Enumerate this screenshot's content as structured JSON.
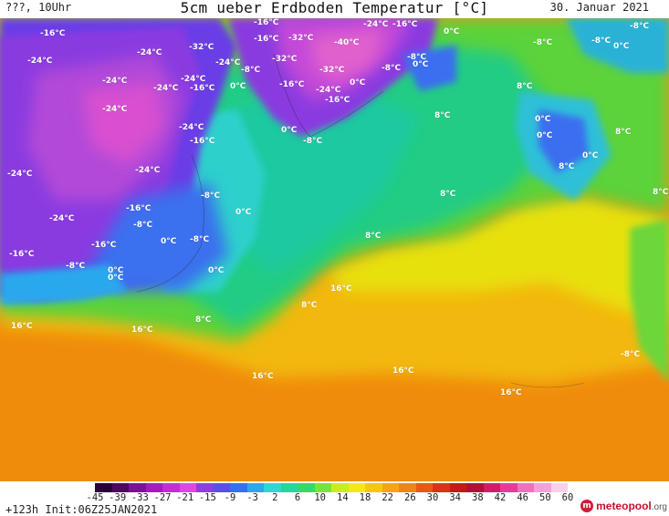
{
  "header": {
    "left": "???, 10Uhr",
    "title": "5cm ueber Erdboden Temperatur [°C]",
    "date": "30. Januar 2021"
  },
  "map": {
    "labels": [
      "-16°C",
      "-24°C",
      "-24°C",
      "-32°C",
      "-16°C",
      "-32°C",
      "-40°C",
      "-24°C",
      "-16°C",
      "0°C",
      "-8°C",
      "-8°C",
      "-16°C",
      "-24°C",
      "-24°C",
      "-24°C",
      "-24°C",
      "-16°C",
      "-8°C",
      "-32°C",
      "-32°C",
      "-8°C",
      "0°C",
      "-8°C",
      "-16°C",
      "0°C",
      "-24°C",
      "-16°C",
      "-24°C",
      "-24°C",
      "-24°C",
      "-24°C",
      "0°C",
      "-16°C",
      "0°C",
      "-8°C",
      "0°C",
      "-16°C",
      "-8°C",
      "0°C",
      "-8°C",
      "0°C",
      "-16°C",
      "-16°C",
      "8°C",
      "0°C",
      "8°C",
      "-24°C",
      "0°C",
      "8°C",
      "0°C",
      "0°C",
      "8°C",
      "-8°C",
      "-8°C",
      "8°C",
      "8°C",
      "16°C",
      "8°C",
      "8°C",
      "16°C",
      "16°C",
      "16°C",
      "16°C",
      "16°C",
      "-8°C",
      "0°C",
      "-8°C",
      "0°C",
      "8°C"
    ]
  },
  "legend": {
    "ticks": [
      "-45",
      "-39",
      "-33",
      "-27",
      "-21",
      "-15",
      "-9",
      "-3",
      "2",
      "6",
      "10",
      "14",
      "18",
      "22",
      "26",
      "30",
      "34",
      "38",
      "42",
      "46",
      "50",
      "60"
    ],
    "colors": [
      "#2a003a",
      "#4e0a5e",
      "#7a1492",
      "#a21cc0",
      "#c82ad6",
      "#e047de",
      "#8a3fe0",
      "#5a4fe8",
      "#3a6ef0",
      "#2ea6f0",
      "#2fd6d6",
      "#22d89a",
      "#36d86a",
      "#7ae23a",
      "#c8ec20",
      "#f2e818",
      "#f2c814",
      "#f2a614",
      "#f28414",
      "#e85a14",
      "#d83218",
      "#c41a1a",
      "#b01038",
      "#d01c6a",
      "#e83a9a",
      "#f070c0",
      "#f4a0dc",
      "#f8d0ee"
    ]
  },
  "footer": {
    "init": "+123h Init:06Z25JAN2021",
    "brand_name": "meteopool",
    "brand_tld": ".org"
  }
}
